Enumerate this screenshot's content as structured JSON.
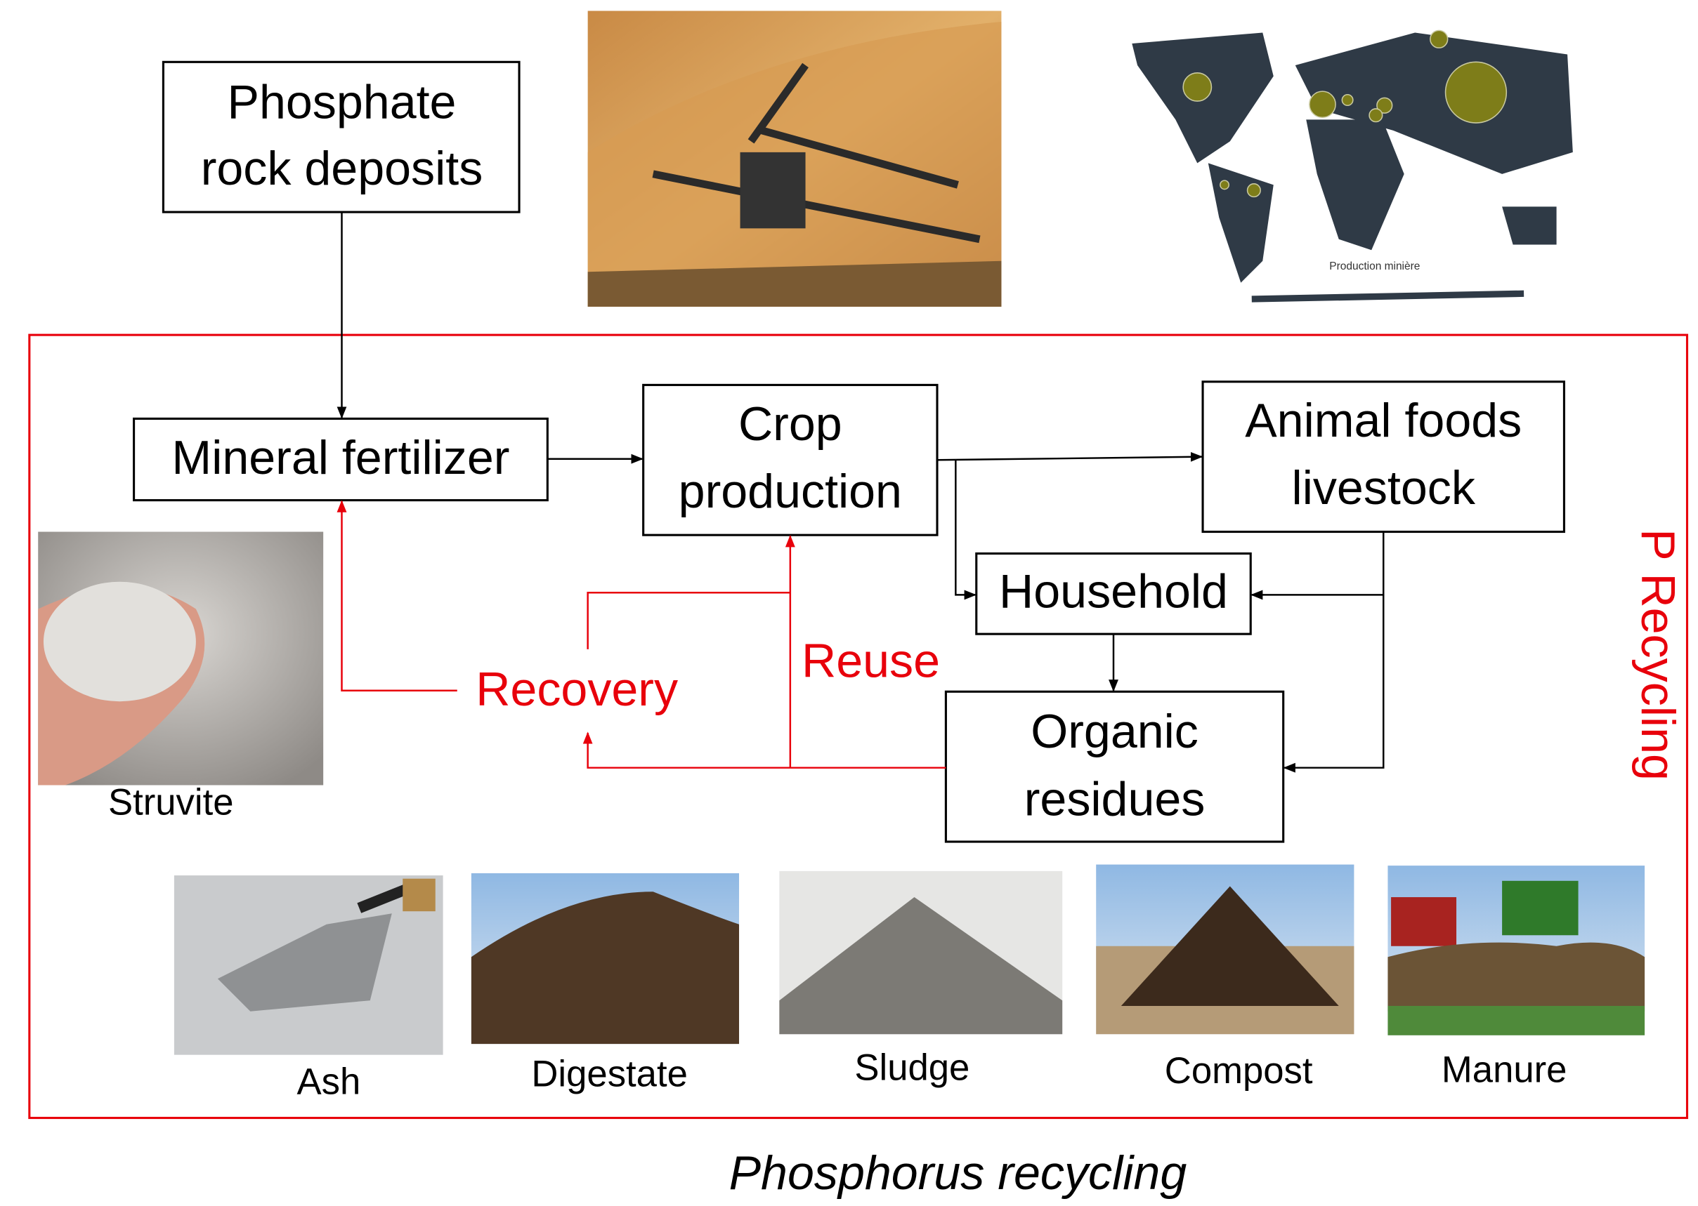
{
  "header": {
    "source": {
      "lines": [
        "Phosphate",
        "rock deposits"
      ]
    },
    "map_caption": "Production minière"
  },
  "nodes": [
    {
      "lines": [
        "Mineral fertilizer"
      ]
    },
    {
      "lines": [
        "Crop",
        "production"
      ]
    },
    {
      "lines": [
        "Animal foods",
        "livestock"
      ]
    },
    {
      "lines": [
        "Household"
      ]
    },
    {
      "lines": [
        "Organic",
        "residues"
      ]
    }
  ],
  "flows": {
    "recovery": "Recovery",
    "reuse": "Reuse"
  },
  "frame_label": "P Recycling",
  "images": [
    "Struvite",
    "Ash",
    "Digestate",
    "Sludge",
    "Compost",
    "Manure"
  ],
  "caption": "Phosphorus recycling"
}
